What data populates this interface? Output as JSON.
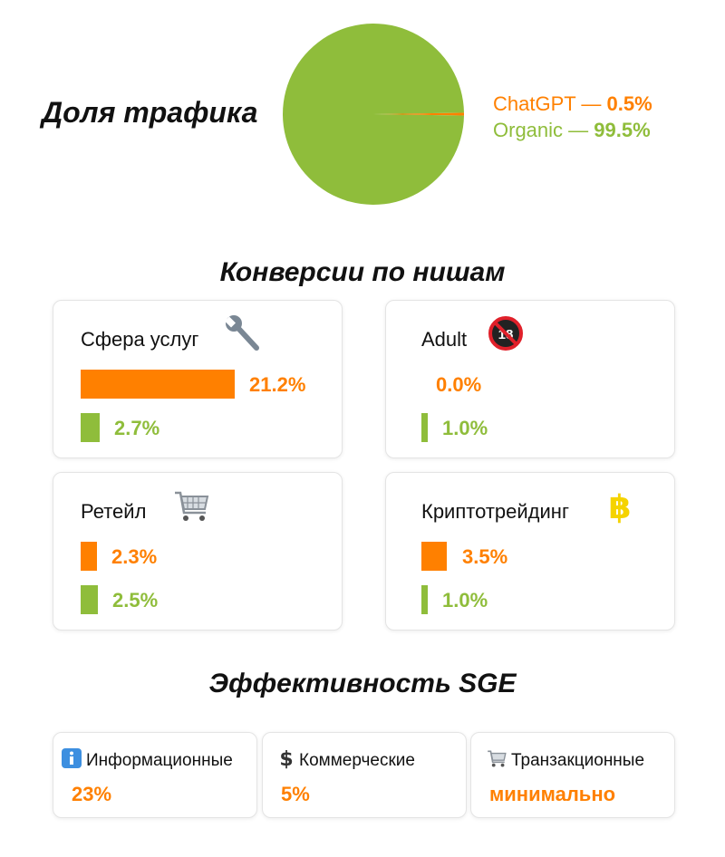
{
  "traffic_share": {
    "title": "Доля трафика",
    "legend": [
      {
        "label": "ChatGPT —",
        "value": "0.5%",
        "color": "#ff8000"
      },
      {
        "label": "Organic —",
        "value": "99.5%",
        "color": "#8fbd3b"
      }
    ]
  },
  "chart_data": [
    {
      "type": "pie",
      "title": "Доля трафика",
      "categories": [
        "ChatGPT",
        "Organic"
      ],
      "values": [
        0.5,
        99.5
      ],
      "colors": [
        "#ff8000",
        "#8fbd3b"
      ]
    },
    {
      "type": "bar",
      "title": "Конверсии по нишам",
      "categories": [
        "Сфера услуг",
        "Adult",
        "Ретейл",
        "Криптотрейдинг"
      ],
      "series": [
        {
          "values": [
            21.2,
            0.0,
            2.3,
            3.5
          ],
          "color": "#ff8000"
        },
        {
          "values": [
            2.7,
            1.0,
            2.5,
            1.0
          ],
          "color": "#8fbd3b"
        }
      ],
      "unit": "%"
    }
  ],
  "conversions": {
    "title": "Конверсии по нишам",
    "niches": [
      {
        "name": "Сфера услуг",
        "icon": "wrench-icon",
        "orange_label": "21.2%",
        "green_label": "2.7%"
      },
      {
        "name": "Adult",
        "icon": "no-under-18-icon",
        "orange_label": "0.0%",
        "green_label": "1.0%"
      },
      {
        "name": "Ретейл",
        "icon": "shopping-cart-icon",
        "orange_label": "2.3%",
        "green_label": "2.5%"
      },
      {
        "name": "Криптотрейдинг",
        "icon": "bitcoin-icon",
        "orange_label": "3.5%",
        "green_label": "1.0%"
      }
    ]
  },
  "sge": {
    "title": "Эффективность SGE",
    "cards": [
      {
        "label": "Информационные",
        "value": "23%",
        "icon": "info-icon"
      },
      {
        "label": "Коммерческие",
        "value": "5%",
        "icon": "dollar-icon"
      },
      {
        "label": "Транзакционные",
        "value": "минимально",
        "icon": "shopping-cart-icon"
      }
    ]
  }
}
